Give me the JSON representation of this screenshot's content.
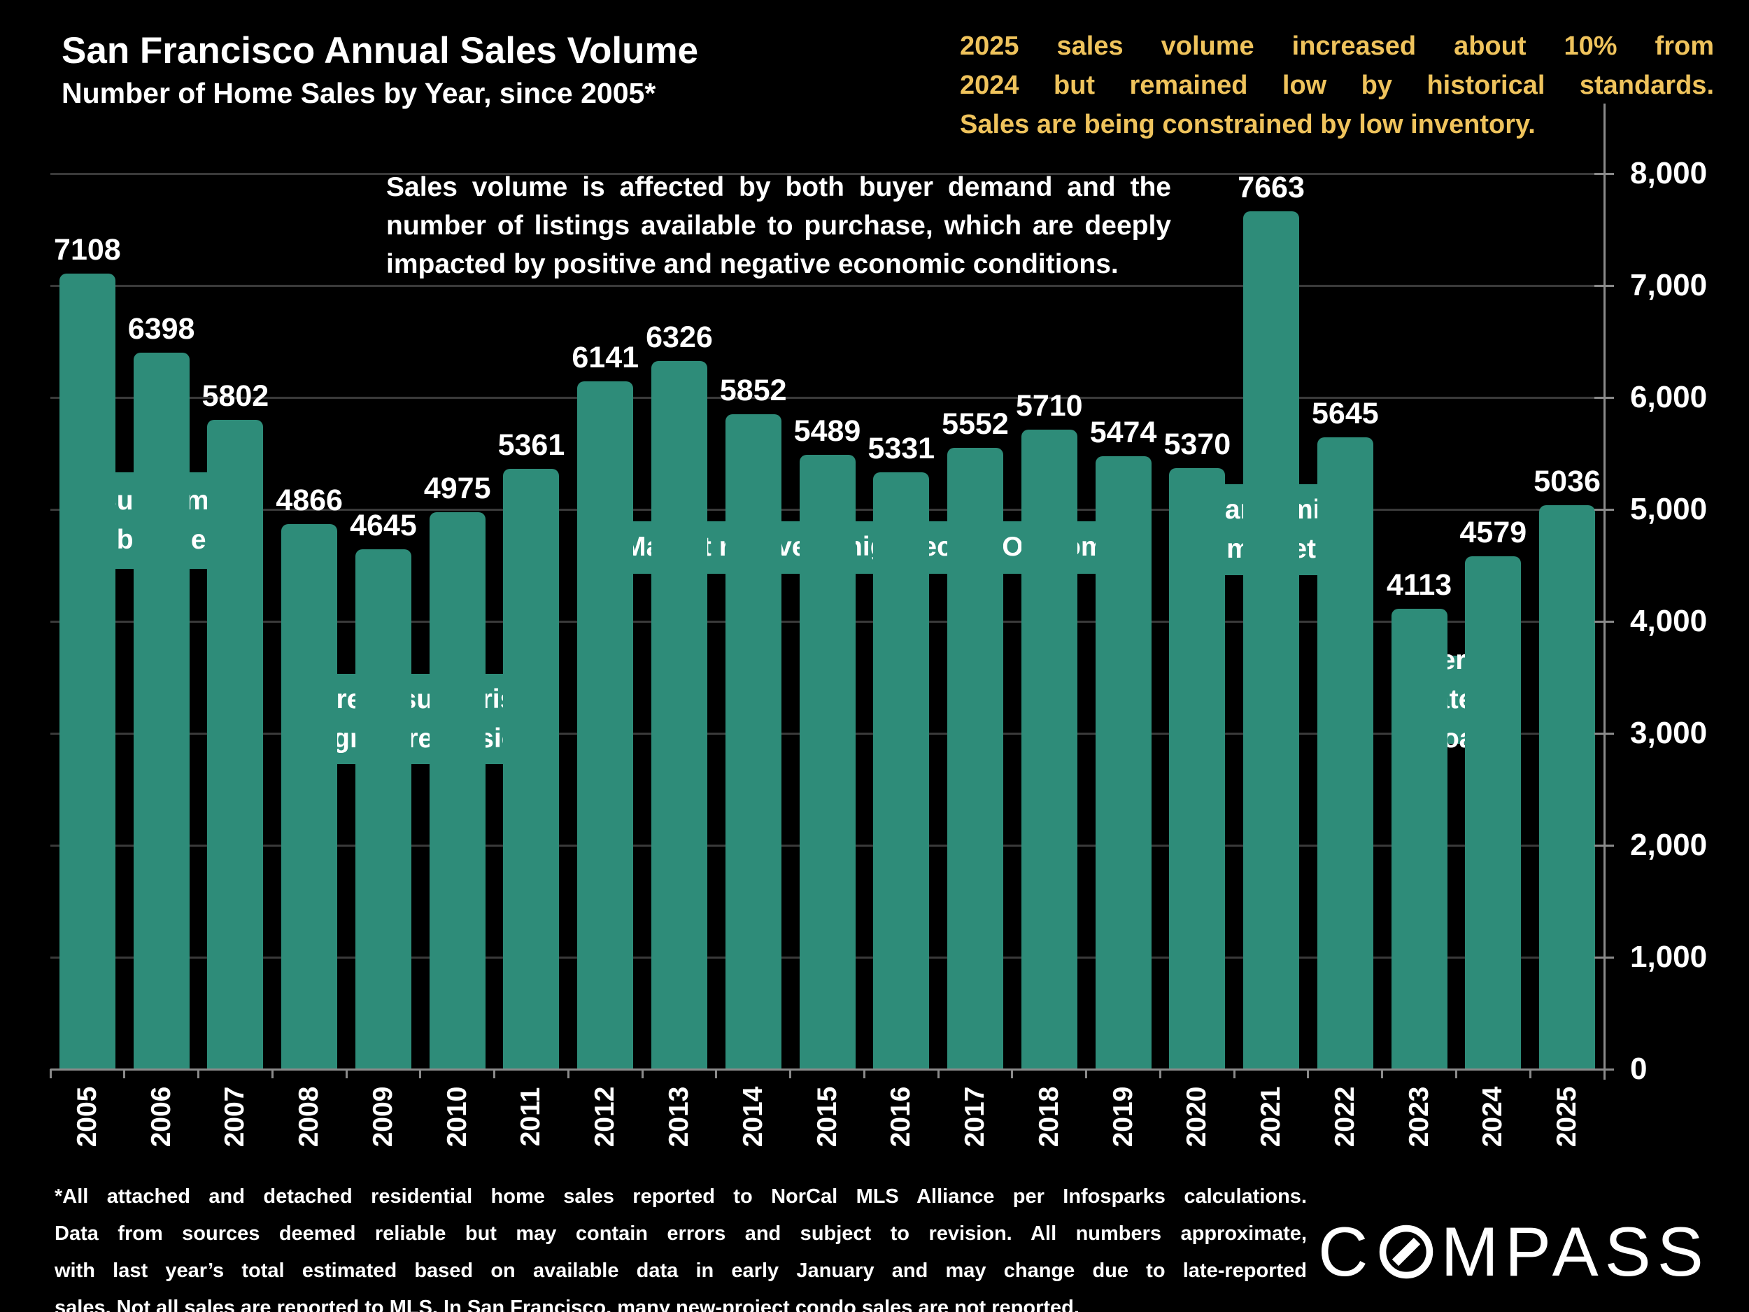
{
  "header": {
    "title": "San Francisco Annual Sales Volume",
    "subtitle": "Number of Home Sales by Year, since 2005*"
  },
  "highlight_note": {
    "lines": [
      "2025 sales volume increased about 10% from",
      "2024 but remained low by historical standards.",
      "Sales are being constrained by low inventory."
    ]
  },
  "chart_note": {
    "lines": [
      "Sales volume is affected by both buyer demand and the",
      "number of listings available to purchase, which are deeply",
      "impacted by positive and negative economic conditions."
    ]
  },
  "footnote": {
    "lines": [
      "*All attached and detached residential home sales reported to NorCal MLS Alliance per Infosparks calculations.",
      "Data from sources deemed reliable but may contain errors and subject to revision. All numbers approximate,",
      "with last year’s total estimated based on available data in early January and may change due to late-reported",
      "sales. Not all sales are reported to MLS. In San Francisco, many new-project condo sales are not reported."
    ]
  },
  "logo": {
    "text": "COMPASS",
    "prefix": "C",
    "suffix": "MPASS"
  },
  "colors": {
    "background": "#000000",
    "bar": "#2E8C79",
    "highlight_text": "#EFC35C",
    "text": "#FFFFFF",
    "gridline": "#3A3A3A",
    "axis": "#8A8A8A"
  },
  "chart_data": {
    "type": "bar",
    "title": "San Francisco Annual Sales Volume",
    "subtitle": "Number of Home Sales by Year, since 2005*",
    "categories": [
      "2005",
      "2006",
      "2007",
      "2008",
      "2009",
      "2010",
      "2011",
      "2012",
      "2013",
      "2014",
      "2015",
      "2016",
      "2017",
      "2018",
      "2019",
      "2020",
      "2021",
      "2022",
      "2023",
      "2024",
      "2025"
    ],
    "values": [
      7108,
      6398,
      5802,
      4866,
      4645,
      4975,
      5361,
      6141,
      6326,
      5852,
      5489,
      5331,
      5552,
      5710,
      5474,
      5370,
      7663,
      5645,
      4113,
      4579,
      5036
    ],
    "xlabel": "",
    "ylabel": "",
    "ylim": [
      0,
      8000
    ],
    "ytick_interval": 1000,
    "ytick_labels": [
      "0",
      "1,000",
      "2,000",
      "3,000",
      "4,000",
      "5,000",
      "6,000",
      "7,000",
      "8,000"
    ],
    "yaxis_side": "right",
    "grid": true,
    "bar_value_labels": true,
    "annotations": [
      {
        "label": "Subprime bubble",
        "lines": [
          "Subprime",
          "bubble"
        ],
        "from": "2005",
        "to": "2007",
        "value_top": 5330,
        "value_bottom": 4470
      },
      {
        "label": "Foreclosure crisis & great recession",
        "lines": [
          "Foreclosure crisis",
          "& great recession"
        ],
        "from": "2008",
        "to": "2011",
        "value_top": 3530,
        "value_bottom": 2725
      },
      {
        "label": "Market recovery, high-tech/IPO boom",
        "lines": [
          "Market recovery, high-tech/IPO boom"
        ],
        "from": "2012",
        "to": "2019",
        "value_top": 4895,
        "value_bottom": 4425
      },
      {
        "label": "Pandemic market",
        "lines": [
          "Pandemic",
          "market"
        ],
        "from": "2020",
        "to": "2022",
        "value_top": 5225,
        "value_bottom": 4415
      },
      {
        "label": "Interest rates soar",
        "lines": [
          "Interest",
          "rates soar"
        ],
        "from": "2023",
        "to": "2024",
        "value_top": 3695,
        "value_bottom": 2905
      }
    ]
  }
}
